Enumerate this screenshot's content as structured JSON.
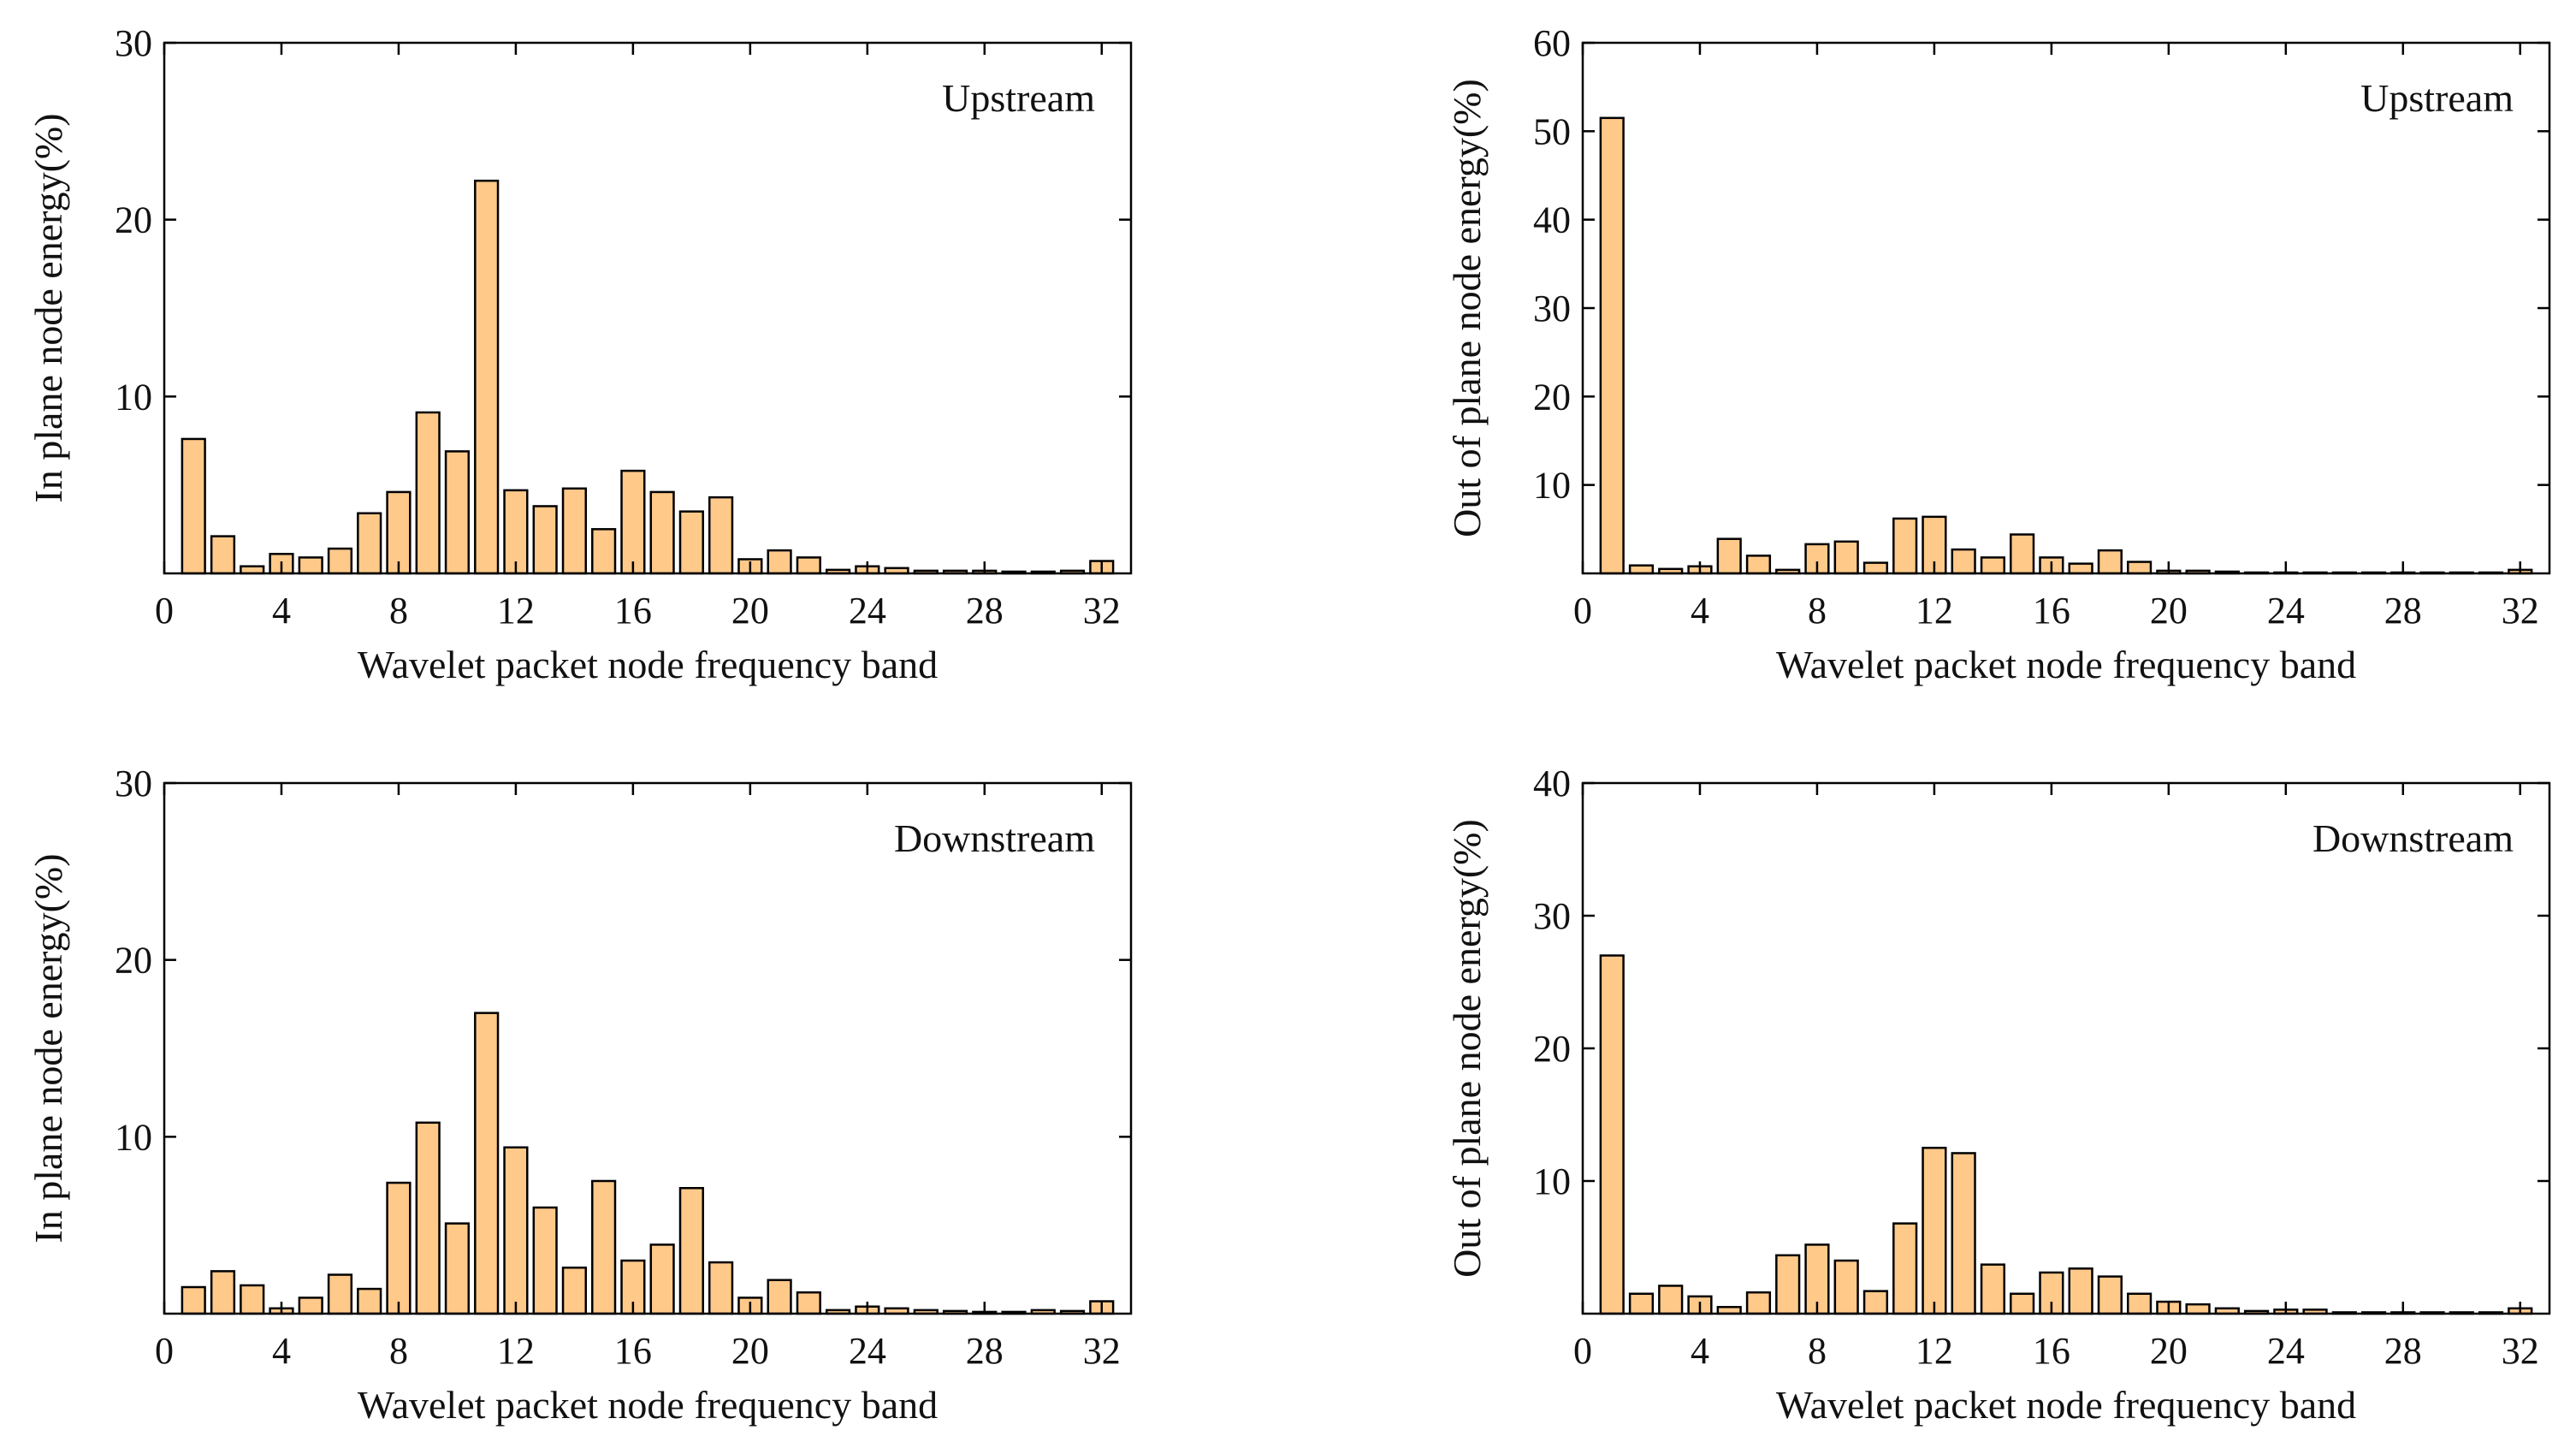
{
  "figure": {
    "bar_color": "#FFC98A",
    "edge_color": "#000000"
  },
  "chart_data": [
    {
      "type": "bar",
      "title": "",
      "annotation": "Upstream",
      "xlabel": "Wavelet packet node frequency band",
      "ylabel": "In plane node energy(%)",
      "xlim": [
        0,
        33
      ],
      "ylim": [
        0,
        30
      ],
      "xticks": [
        0,
        4,
        8,
        12,
        16,
        20,
        24,
        28,
        32
      ],
      "yticks": [
        10,
        20,
        30
      ],
      "grid": false,
      "x": [
        1,
        2,
        3,
        4,
        5,
        6,
        7,
        8,
        9,
        10,
        11,
        12,
        13,
        14,
        15,
        16,
        17,
        18,
        19,
        20,
        21,
        22,
        23,
        24,
        25,
        26,
        27,
        28,
        29,
        30,
        31,
        32
      ],
      "values": [
        7.6,
        2.1,
        0.4,
        1.1,
        0.9,
        1.4,
        3.4,
        4.6,
        9.1,
        6.9,
        22.2,
        4.7,
        3.8,
        4.8,
        2.5,
        5.8,
        4.6,
        3.5,
        4.3,
        0.8,
        1.3,
        0.9,
        0.2,
        0.4,
        0.3,
        0.15,
        0.15,
        0.15,
        0.1,
        0.1,
        0.15,
        0.7
      ]
    },
    {
      "type": "bar",
      "title": "",
      "annotation": "Upstream",
      "xlabel": "Wavelet packet node frequency band",
      "ylabel": "Out of plane node energy(%)",
      "xlim": [
        0,
        33
      ],
      "ylim": [
        0,
        60
      ],
      "xticks": [
        0,
        4,
        8,
        12,
        16,
        20,
        24,
        28,
        32
      ],
      "yticks": [
        10,
        20,
        30,
        40,
        50,
        60
      ],
      "grid": false,
      "x": [
        1,
        2,
        3,
        4,
        5,
        6,
        7,
        8,
        9,
        10,
        11,
        12,
        13,
        14,
        15,
        16,
        17,
        18,
        19,
        20,
        21,
        22,
        23,
        24,
        25,
        26,
        27,
        28,
        29,
        30,
        31,
        32
      ],
      "values": [
        51.5,
        0.9,
        0.5,
        0.8,
        3.9,
        2.0,
        0.4,
        3.3,
        3.6,
        1.2,
        6.2,
        6.4,
        2.7,
        1.8,
        4.4,
        1.8,
        1.1,
        2.6,
        1.3,
        0.3,
        0.3,
        0.2,
        0.1,
        0.1,
        0.1,
        0.1,
        0.1,
        0.1,
        0.1,
        0.1,
        0.1,
        0.4
      ]
    },
    {
      "type": "bar",
      "title": "",
      "annotation": "Downstream",
      "xlabel": "Wavelet packet node frequency band",
      "ylabel": "In plane node energy(%)",
      "xlim": [
        0,
        33
      ],
      "ylim": [
        0,
        30
      ],
      "xticks": [
        0,
        4,
        8,
        12,
        16,
        20,
        24,
        28,
        32
      ],
      "yticks": [
        10,
        20,
        30
      ],
      "grid": false,
      "x": [
        1,
        2,
        3,
        4,
        5,
        6,
        7,
        8,
        9,
        10,
        11,
        12,
        13,
        14,
        15,
        16,
        17,
        18,
        19,
        20,
        21,
        22,
        23,
        24,
        25,
        26,
        27,
        28,
        29,
        30,
        31,
        32
      ],
      "values": [
        1.5,
        2.4,
        1.6,
        0.3,
        0.9,
        2.2,
        1.4,
        7.4,
        10.8,
        5.1,
        17.0,
        9.4,
        6.0,
        2.6,
        7.5,
        3.0,
        3.9,
        7.1,
        2.9,
        0.9,
        1.9,
        1.2,
        0.2,
        0.4,
        0.3,
        0.2,
        0.15,
        0.1,
        0.1,
        0.2,
        0.15,
        0.7
      ]
    },
    {
      "type": "bar",
      "title": "",
      "annotation": "Downstream",
      "xlabel": "Wavelet packet node frequency band",
      "ylabel": "Out of plane node energy(%)",
      "xlim": [
        0,
        33
      ],
      "ylim": [
        0,
        40
      ],
      "xticks": [
        0,
        4,
        8,
        12,
        16,
        20,
        24,
        28,
        32
      ],
      "yticks": [
        10,
        20,
        30,
        40
      ],
      "grid": false,
      "x": [
        1,
        2,
        3,
        4,
        5,
        6,
        7,
        8,
        9,
        10,
        11,
        12,
        13,
        14,
        15,
        16,
        17,
        18,
        19,
        20,
        21,
        22,
        23,
        24,
        25,
        26,
        27,
        28,
        29,
        30,
        31,
        32
      ],
      "values": [
        27.0,
        1.5,
        2.1,
        1.3,
        0.5,
        1.6,
        4.4,
        5.2,
        4.0,
        1.7,
        6.8,
        12.5,
        12.1,
        3.7,
        1.5,
        3.1,
        3.4,
        2.8,
        1.5,
        0.9,
        0.7,
        0.4,
        0.2,
        0.3,
        0.3,
        0.1,
        0.1,
        0.1,
        0.1,
        0.1,
        0.1,
        0.4
      ]
    }
  ]
}
